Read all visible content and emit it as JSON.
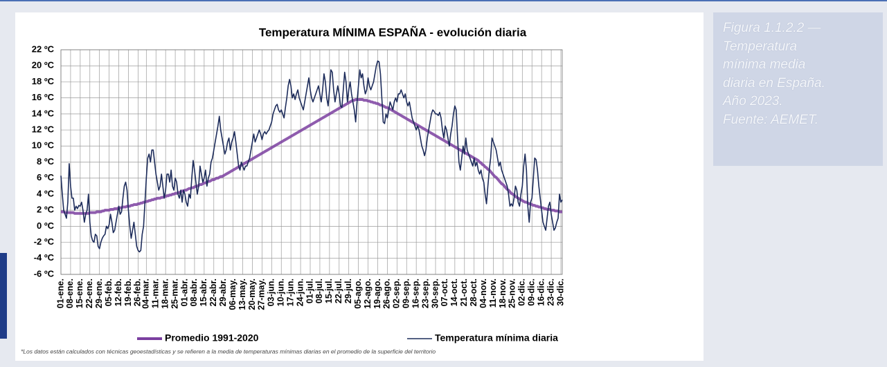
{
  "chart_data": {
    "type": "line",
    "title": "Temperatura MÍNIMA ESPAÑA - evolución diaria",
    "note": "*Los datos están calculados con técnicas geoestadísticas y se refieren a la media de temperaturas mínimas diarias en el promedio de la superficie del territorio",
    "grid": true,
    "ylim": [
      -6,
      22
    ],
    "yticks": [
      {
        "value": -6,
        "label": "-6 ºC"
      },
      {
        "value": -4,
        "label": "-4 ºC"
      },
      {
        "value": -2,
        "label": "-2 ºC"
      },
      {
        "value": 0,
        "label": "0 ºC"
      },
      {
        "value": 2,
        "label": "2 ºC"
      },
      {
        "value": 4,
        "label": "4 ºC"
      },
      {
        "value": 6,
        "label": "6 ºC"
      },
      {
        "value": 8,
        "label": "8 ºC"
      },
      {
        "value": 10,
        "label": "10 ºC"
      },
      {
        "value": 12,
        "label": "12 ºC"
      },
      {
        "value": 14,
        "label": "14 ºC"
      },
      {
        "value": 16,
        "label": "16 ºC"
      },
      {
        "value": 18,
        "label": "18 ºC"
      },
      {
        "value": 20,
        "label": "20 ºC"
      },
      {
        "value": 22,
        "label": "22 ºC"
      }
    ],
    "categories": [
      "01-ene.",
      null,
      null,
      null,
      null,
      null,
      null,
      "08-ene.",
      null,
      null,
      null,
      null,
      null,
      null,
      "15-ene.",
      null,
      null,
      null,
      null,
      null,
      null,
      "22-ene.",
      null,
      null,
      null,
      null,
      null,
      null,
      "29-ene.",
      null,
      null,
      null,
      null,
      null,
      null,
      "05-feb.",
      null,
      null,
      null,
      null,
      null,
      null,
      "12-feb.",
      null,
      null,
      null,
      null,
      null,
      null,
      "19-feb.",
      null,
      null,
      null,
      null,
      null,
      null,
      "26-feb.",
      null,
      null,
      null,
      null,
      null,
      "04-mar.",
      null,
      null,
      null,
      null,
      null,
      null,
      "11-mar.",
      null,
      null,
      null,
      null,
      null,
      null,
      "18-mar.",
      null,
      null,
      null,
      null,
      null,
      null,
      "25-mar.",
      null,
      null,
      null,
      null,
      null,
      null,
      "01-abr.",
      null,
      null,
      null,
      null,
      null,
      null,
      "08-abr.",
      null,
      null,
      null,
      null,
      null,
      null,
      "15-abr.",
      null,
      null,
      null,
      null,
      null,
      null,
      "22-abr.",
      null,
      null,
      null,
      null,
      null,
      null,
      "29-abr.",
      null,
      null,
      null,
      null,
      null,
      null,
      "06-may.",
      null,
      null,
      null,
      null,
      null,
      null,
      "13-may.",
      null,
      null,
      null,
      null,
      null,
      null,
      "20-may.",
      null,
      null,
      null,
      null,
      null,
      null,
      "27-may.",
      null,
      null,
      null,
      null,
      null,
      null,
      "03-jun.",
      null,
      null,
      null,
      null,
      null,
      null,
      "10-jun.",
      null,
      null,
      null,
      null,
      null,
      null,
      "17-jun.",
      null,
      null,
      null,
      null,
      null,
      null,
      "24-jun.",
      null,
      null,
      null,
      null,
      null,
      null,
      "01-jul.",
      null,
      null,
      null,
      null,
      null,
      null,
      "08-jul.",
      null,
      null,
      null,
      null,
      null,
      null,
      "15-jul.",
      null,
      null,
      null,
      null,
      null,
      null,
      "22-jul.",
      null,
      null,
      null,
      null,
      null,
      null,
      "29-jul.",
      null,
      null,
      null,
      null,
      null,
      null,
      "05-ago.",
      null,
      null,
      null,
      null,
      null,
      null,
      "12-ago.",
      null,
      null,
      null,
      null,
      null,
      null,
      "19-ago.",
      null,
      null,
      null,
      null,
      null,
      null,
      "26-ago.",
      null,
      null,
      null,
      null,
      null,
      null,
      "02-sep.",
      null,
      null,
      null,
      null,
      null,
      null,
      "09-sep.",
      null,
      null,
      null,
      null,
      null,
      null,
      "16-sep.",
      null,
      null,
      null,
      null,
      null,
      null,
      "23-sep.",
      null,
      null,
      null,
      null,
      null,
      null,
      "30-sep.",
      null,
      null,
      null,
      null,
      null,
      null,
      "07-oct.",
      null,
      null,
      null,
      null,
      null,
      null,
      "14-oct.",
      null,
      null,
      null,
      null,
      null,
      null,
      "21-oct.",
      null,
      null,
      null,
      null,
      null,
      null,
      "28-oct.",
      null,
      null,
      null,
      null,
      null,
      null,
      "04-nov.",
      null,
      null,
      null,
      null,
      null,
      null,
      "11-nov.",
      null,
      null,
      null,
      null,
      null,
      null,
      "18-nov.",
      null,
      null,
      null,
      null,
      null,
      null,
      "25-nov.",
      null,
      null,
      null,
      null,
      null,
      null,
      "02-dic.",
      null,
      null,
      null,
      null,
      null,
      null,
      "09-dic.",
      null,
      null,
      null,
      null,
      null,
      null,
      "16-dic.",
      null,
      null,
      null,
      null,
      null,
      null,
      "23-dic.",
      null,
      null,
      null,
      null,
      null,
      null,
      "30-dic.",
      null
    ],
    "series": [
      {
        "name": "Promedio 1991-2020",
        "color": "#7b3fa0",
        "values": [
          1.8,
          1.8,
          1.8,
          1.7,
          1.7,
          1.7,
          1.7,
          1.7,
          1.7,
          1.7,
          1.6,
          1.6,
          1.6,
          1.6,
          1.6,
          1.6,
          1.6,
          1.6,
          1.6,
          1.6,
          1.6,
          1.7,
          1.7,
          1.7,
          1.7,
          1.7,
          1.8,
          1.8,
          1.8,
          1.8,
          1.9,
          1.9,
          2.0,
          2.0,
          2.0,
          2.0,
          2.1,
          2.1,
          2.1,
          2.2,
          2.2,
          2.2,
          2.3,
          2.3,
          2.3,
          2.4,
          2.4,
          2.4,
          2.5,
          2.5,
          2.5,
          2.6,
          2.6,
          2.7,
          2.7,
          2.7,
          2.8,
          2.8,
          2.9,
          2.9,
          3.0,
          3.0,
          3.1,
          3.1,
          3.2,
          3.2,
          3.3,
          3.3,
          3.4,
          3.4,
          3.5,
          3.5,
          3.5,
          3.6,
          3.6,
          3.7,
          3.7,
          3.8,
          3.8,
          3.9,
          3.9,
          4.0,
          4.0,
          4.1,
          4.1,
          4.2,
          4.2,
          4.3,
          4.4,
          4.4,
          4.5,
          4.5,
          4.6,
          4.7,
          4.7,
          4.8,
          4.8,
          4.9,
          5.0,
          5.0,
          5.1,
          5.2,
          5.2,
          5.3,
          5.4,
          5.4,
          5.5,
          5.6,
          5.6,
          5.7,
          5.8,
          5.8,
          5.9,
          6.0,
          6.0,
          6.1,
          6.2,
          6.2,
          6.3,
          6.4,
          6.5,
          6.6,
          6.7,
          6.8,
          6.9,
          7.0,
          7.1,
          7.2,
          7.3,
          7.4,
          7.5,
          7.6,
          7.7,
          7.8,
          7.9,
          8.0,
          8.1,
          8.2,
          8.3,
          8.4,
          8.5,
          8.6,
          8.7,
          8.8,
          8.9,
          9.0,
          9.1,
          9.2,
          9.3,
          9.4,
          9.5,
          9.6,
          9.7,
          9.8,
          9.9,
          10.0,
          10.1,
          10.2,
          10.3,
          10.4,
          10.5,
          10.6,
          10.7,
          10.8,
          10.9,
          11.0,
          11.1,
          11.2,
          11.3,
          11.4,
          11.5,
          11.6,
          11.7,
          11.8,
          11.9,
          12.0,
          12.1,
          12.2,
          12.3,
          12.4,
          12.5,
          12.6,
          12.7,
          12.8,
          12.9,
          13.0,
          13.1,
          13.2,
          13.3,
          13.4,
          13.5,
          13.6,
          13.7,
          13.8,
          13.9,
          14.0,
          14.1,
          14.2,
          14.3,
          14.4,
          14.5,
          14.6,
          14.7,
          14.8,
          14.9,
          15.0,
          15.1,
          15.2,
          15.3,
          15.4,
          15.5,
          15.6,
          15.7,
          15.7,
          15.8,
          15.8,
          15.8,
          15.8,
          15.8,
          15.8,
          15.7,
          15.7,
          15.7,
          15.6,
          15.6,
          15.5,
          15.5,
          15.4,
          15.4,
          15.3,
          15.3,
          15.2,
          15.1,
          15.1,
          15.0,
          14.9,
          14.8,
          14.8,
          14.7,
          14.6,
          14.5,
          14.4,
          14.3,
          14.2,
          14.1,
          14.0,
          13.9,
          13.8,
          13.7,
          13.6,
          13.5,
          13.4,
          13.3,
          13.2,
          13.1,
          13.0,
          12.9,
          12.8,
          12.7,
          12.6,
          12.5,
          12.4,
          12.3,
          12.2,
          12.1,
          12.0,
          11.9,
          11.8,
          11.7,
          11.6,
          11.5,
          11.4,
          11.3,
          11.2,
          11.1,
          11.0,
          10.9,
          10.8,
          10.7,
          10.6,
          10.5,
          10.4,
          10.3,
          10.2,
          10.1,
          10.0,
          9.9,
          9.8,
          9.7,
          9.6,
          9.5,
          9.4,
          9.3,
          9.2,
          9.1,
          9.0,
          8.9,
          8.8,
          8.7,
          8.6,
          8.5,
          8.4,
          8.3,
          8.2,
          8.0,
          7.9,
          7.7,
          7.6,
          7.4,
          7.3,
          7.1,
          7.0,
          6.8,
          6.6,
          6.4,
          6.2,
          6.1,
          5.9,
          5.7,
          5.5,
          5.3,
          5.2,
          5.0,
          4.8,
          4.6,
          4.5,
          4.3,
          4.1,
          4.0,
          3.9,
          3.7,
          3.6,
          3.5,
          3.4,
          3.3,
          3.2,
          3.1,
          3.0,
          3.0,
          2.9,
          2.8,
          2.8,
          2.7,
          2.6,
          2.6,
          2.5,
          2.5,
          2.4,
          2.4,
          2.3,
          2.3,
          2.2,
          2.2,
          2.1,
          2.1,
          2.1,
          2.0,
          2.0,
          2.0,
          1.9,
          1.9,
          1.9,
          1.8,
          1.8,
          1.8
        ]
      },
      {
        "name": "Temperatura mínima diaria",
        "color": "#1c2b5a",
        "values": [
          6.3,
          4,
          2,
          1.5,
          1,
          3,
          7.8,
          5,
          3.5,
          3.5,
          2,
          2.5,
          2.2,
          2.6,
          2.5,
          3,
          2,
          0.5,
          1.5,
          2,
          4,
          0.5,
          -1.2,
          -1.8,
          -2,
          -1,
          -1.2,
          -2.5,
          -2.8,
          -2,
          -1.5,
          -1.2,
          -1,
          0,
          -0.3,
          0.2,
          1.5,
          0.5,
          -0.8,
          -0.5,
          0.5,
          1.5,
          2.5,
          1.5,
          1.8,
          3.5,
          5,
          5.5,
          4.5,
          2,
          0,
          -1.5,
          -0.5,
          0.5,
          -1,
          -2.5,
          -3,
          -3.2,
          -3,
          -1,
          0,
          3,
          6,
          8.5,
          9,
          8,
          9.5,
          9.5,
          8,
          6.5,
          5.5,
          4.5,
          5,
          6.5,
          5,
          3.5,
          4.5,
          6.5,
          6.5,
          5.5,
          7,
          5,
          4.5,
          6,
          5.5,
          4,
          3.5,
          4.5,
          3,
          4.5,
          4,
          3,
          2.5,
          4,
          3.5,
          6,
          8.2,
          7,
          5.5,
          4,
          5,
          7.5,
          6.5,
          5.5,
          6,
          7,
          5,
          6,
          6.5,
          8,
          8.5,
          9.5,
          10.5,
          11.5,
          12.5,
          13.7,
          12,
          11,
          10,
          9,
          9.5,
          10.5,
          11,
          9.5,
          10.5,
          11,
          11.8,
          10.5,
          9,
          7.5,
          7,
          8,
          7.5,
          7,
          7.5,
          7.5,
          8,
          8.5,
          9.5,
          10.5,
          11.5,
          10.5,
          11,
          11.5,
          12,
          11.5,
          10.8,
          11.5,
          11.8,
          11.5,
          11.8,
          12,
          12.5,
          13,
          14,
          14.5,
          15,
          15.2,
          14.5,
          14.2,
          14.5,
          14,
          13.5,
          14.8,
          16,
          17.5,
          18.3,
          17.5,
          16,
          16.5,
          15.8,
          16.5,
          17,
          16,
          15.5,
          15,
          14.5,
          15.5,
          16.5,
          17.5,
          18.5,
          17,
          16,
          15.5,
          16,
          16.5,
          17,
          17.5,
          16.5,
          15.5,
          17,
          19,
          18,
          16,
          15,
          17,
          19.5,
          19.2,
          17,
          15.5,
          16.5,
          17.5,
          16.5,
          15,
          14.8,
          17,
          19.2,
          18,
          15.5,
          17,
          18,
          16.5,
          15.5,
          14.5,
          13,
          15.5,
          17.5,
          19.5,
          18.5,
          19,
          17.5,
          16.5,
          17,
          18.5,
          17.5,
          17,
          17.5,
          18,
          19,
          20,
          20.6,
          20.5,
          19,
          16,
          13,
          12.8,
          14,
          13.5,
          14.5,
          15.5,
          15,
          14.5,
          15.5,
          16,
          15.5,
          16.5,
          16.5,
          17,
          16.5,
          16,
          16.5,
          15.5,
          15,
          15.5,
          14.5,
          13.5,
          13,
          12.5,
          12,
          12.5,
          12,
          11,
          10,
          9.5,
          8.8,
          9.5,
          11,
          12,
          13,
          14,
          14.5,
          14.3,
          14,
          14,
          13.8,
          14.2,
          13.5,
          12,
          11,
          12.5,
          12,
          11,
          10,
          11.5,
          12.5,
          14,
          15,
          14.5,
          11,
          8,
          7,
          8.5,
          10,
          9,
          11,
          9.5,
          9,
          8.5,
          8,
          7.5,
          8.5,
          7.5,
          8,
          7,
          6.5,
          7,
          6,
          5.5,
          4,
          2.8,
          5,
          7,
          8.5,
          11,
          10.5,
          10,
          9.5,
          8.5,
          7.5,
          8,
          7,
          6.5,
          6,
          5.5,
          5,
          4,
          2.5,
          2.8,
          2.5,
          3.5,
          5,
          4.5,
          3,
          2.5,
          4,
          5,
          7.5,
          9,
          7,
          2.5,
          0.5,
          3,
          3.5,
          6,
          8.5,
          8.3,
          7,
          5,
          3.5,
          2,
          0.5,
          0,
          -0.5,
          1,
          2.5,
          3,
          1.5,
          0.5,
          -0.5,
          -0.2,
          0.5,
          1,
          4,
          3,
          3.3
        ]
      }
    ]
  },
  "caption": [
    "Figura 1.1.2.2 —",
    "Temperatura",
    "mínima media",
    "diaria en España.",
    "Año 2023.",
    "Fuente: AEMET."
  ]
}
